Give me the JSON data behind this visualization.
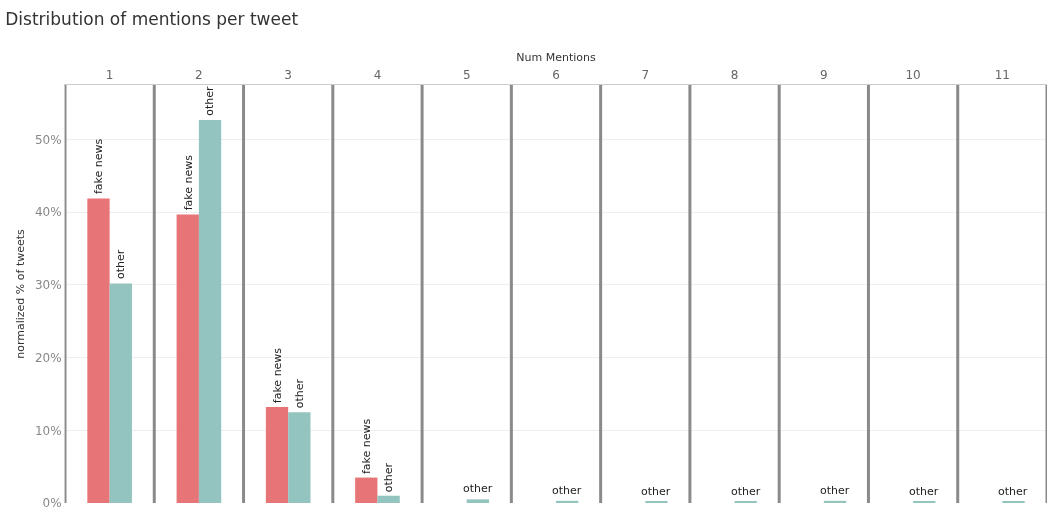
{
  "chart_data": {
    "type": "bar",
    "title": "Distribution of mentions per tweet",
    "xlabel": "Num Mentions",
    "ylabel": "normalized % of tweets",
    "categories": [
      "1",
      "2",
      "3",
      "4",
      "5",
      "6",
      "7",
      "8",
      "9",
      "10",
      "11"
    ],
    "series": [
      {
        "name": "fake news",
        "color": "#e77577",
        "values": [
          41.9,
          39.7,
          13.2,
          3.5,
          null,
          null,
          null,
          null,
          null,
          null,
          null
        ]
      },
      {
        "name": "other",
        "color": "#93c4bf",
        "values": [
          30.2,
          52.7,
          12.5,
          1.0,
          0.5,
          0.3,
          0.2,
          0.2,
          0.3,
          0.2,
          0.2
        ]
      }
    ],
    "ylim": [
      0,
      57.5
    ],
    "yticks": [
      {
        "value": 0,
        "label": "0%"
      },
      {
        "value": 10,
        "label": "10%"
      },
      {
        "value": 20,
        "label": "20%"
      },
      {
        "value": 30,
        "label": "30%"
      },
      {
        "value": 40,
        "label": "40%"
      },
      {
        "value": 50,
        "label": "50%"
      }
    ],
    "grid": "y",
    "legend": false
  }
}
